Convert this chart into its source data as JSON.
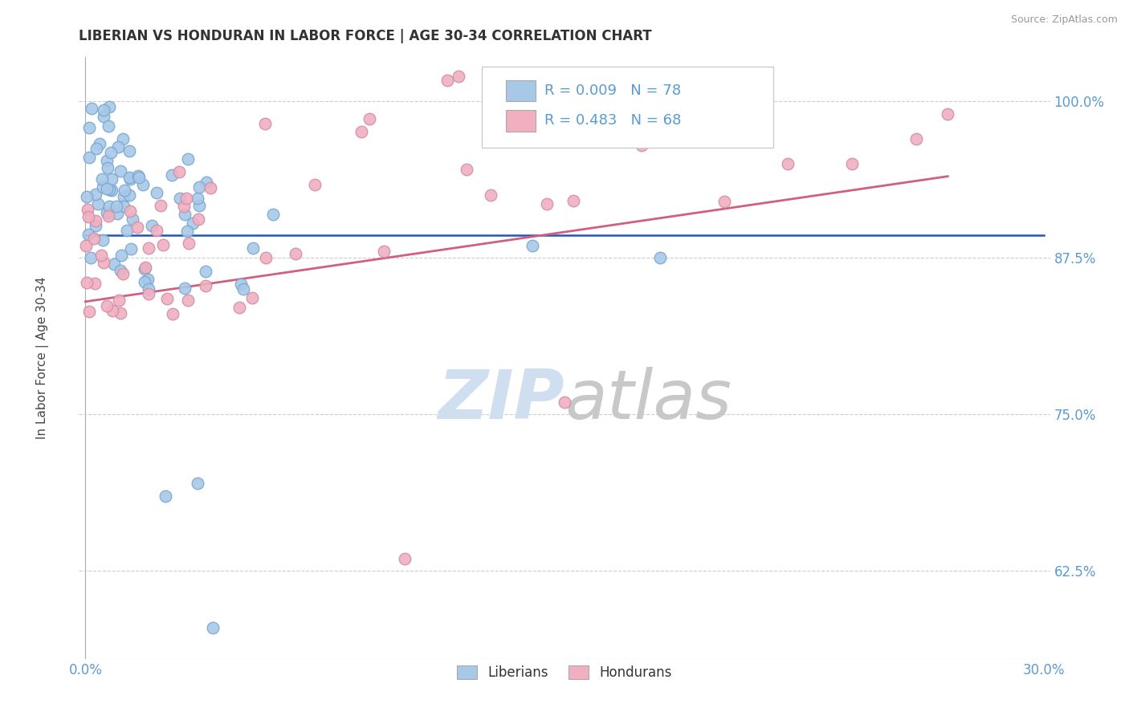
{
  "title": "LIBERIAN VS HONDURAN IN LABOR FORCE | AGE 30-34 CORRELATION CHART",
  "source_text": "Source: ZipAtlas.com",
  "ylabel": "In Labor Force | Age 30-34",
  "xlim": [
    -0.002,
    0.302
  ],
  "ylim": [
    0.555,
    1.035
  ],
  "xticks": [
    0.0,
    0.05,
    0.1,
    0.15,
    0.2,
    0.25,
    0.3
  ],
  "xticklabels": [
    "0.0%",
    "",
    "",
    "",
    "",
    "",
    "30.0%"
  ],
  "yticks": [
    0.625,
    0.75,
    0.875,
    1.0
  ],
  "yticklabels": [
    "62.5%",
    "75.0%",
    "87.5%",
    "100.0%"
  ],
  "blue_color": "#a8c8e8",
  "pink_color": "#f0b0c0",
  "blue_line_color": "#2255bb",
  "pink_line_color": "#d06080",
  "axis_color": "#5b9bd5",
  "grid_color": "#cccccc",
  "watermark_color": "#d0dff0",
  "liberian_R": 0.009,
  "liberian_N": 78,
  "honduran_R": 0.483,
  "honduran_N": 68
}
